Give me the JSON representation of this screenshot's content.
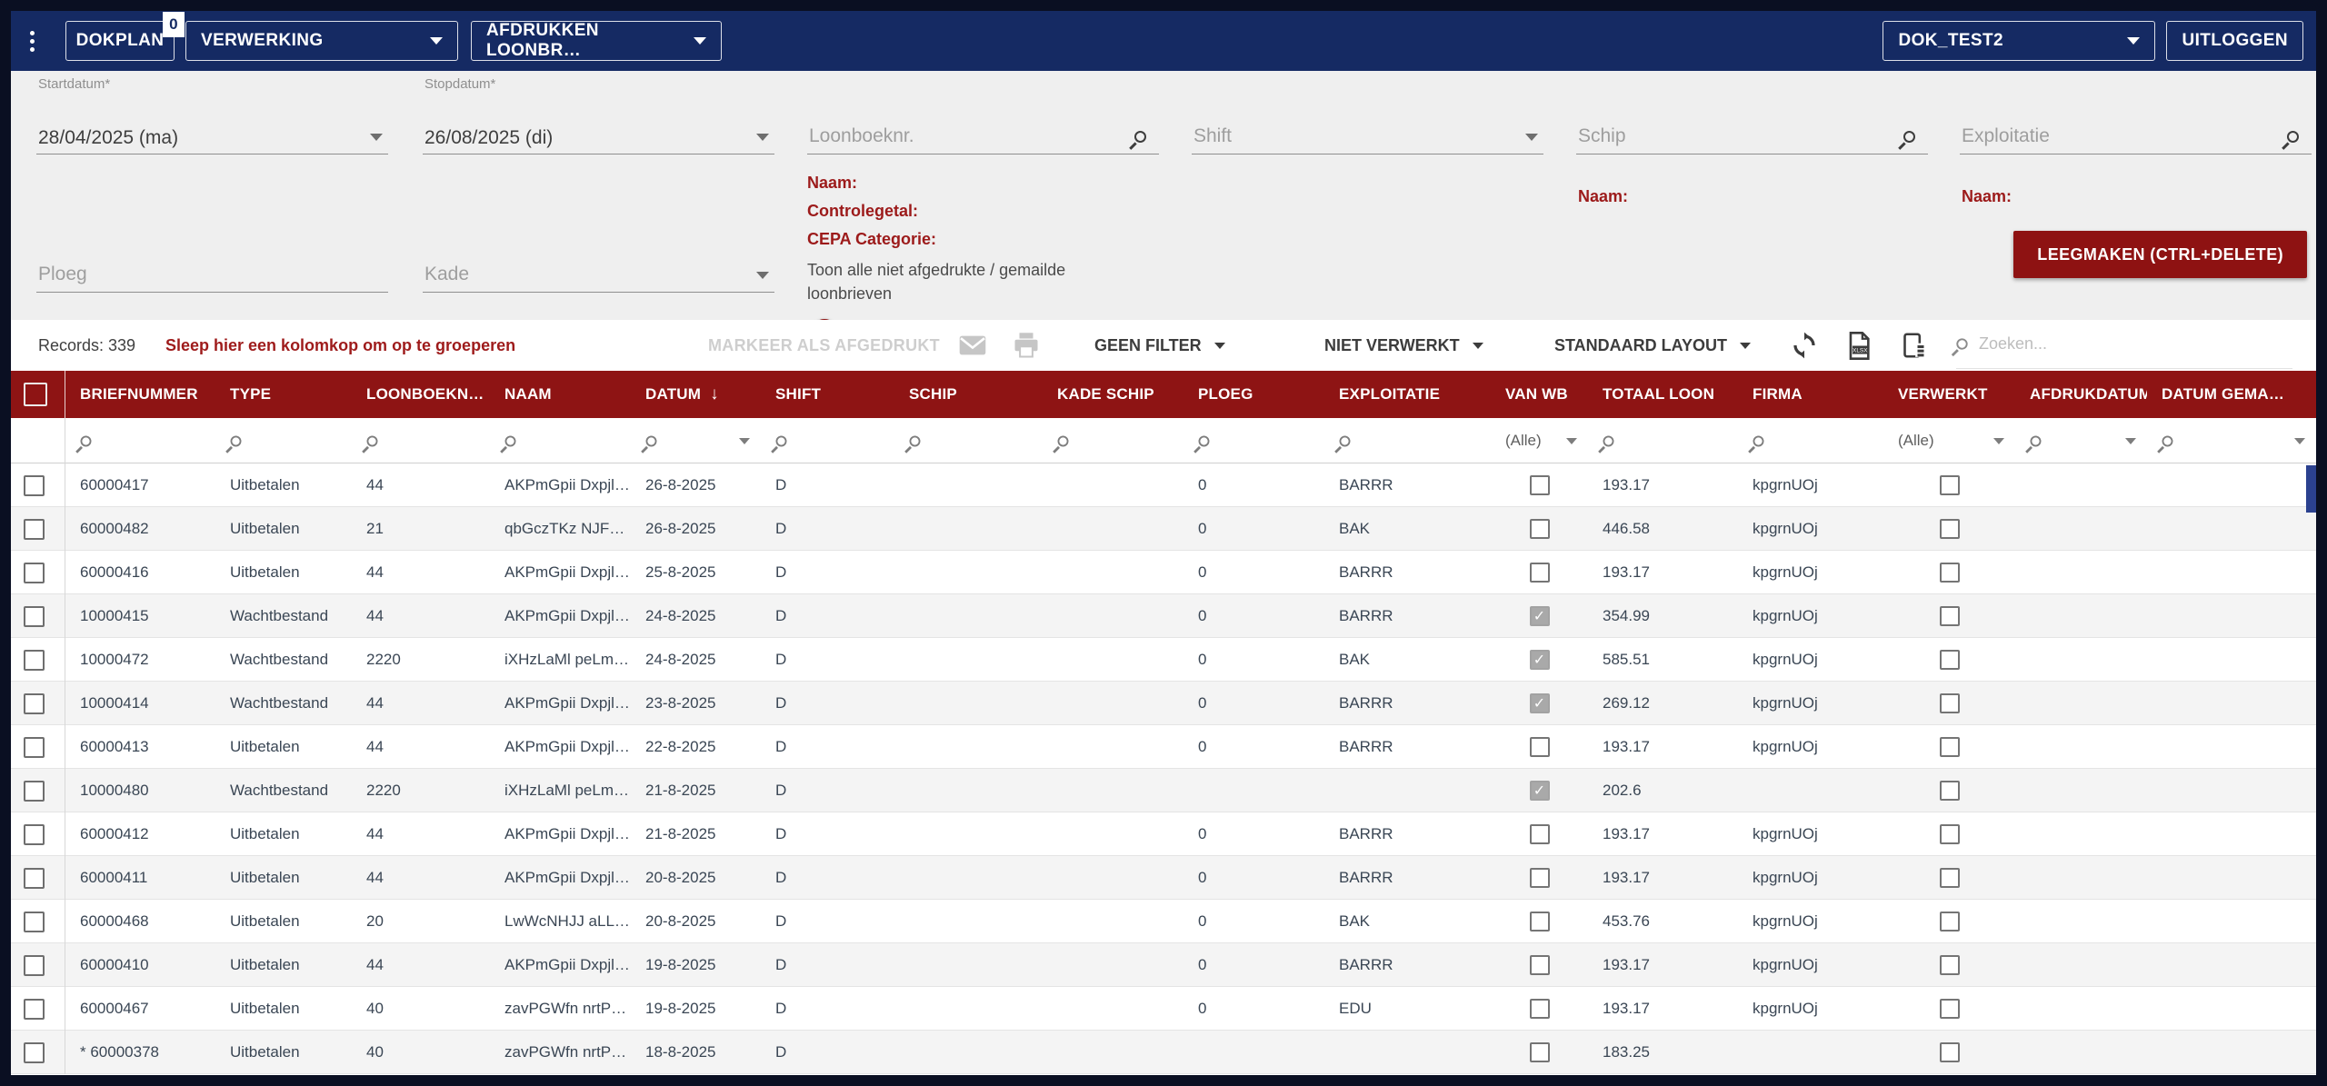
{
  "topbar": {
    "dokplan_label": "DOKPLAN",
    "dokplan_badge": "0",
    "module_dropdown": "VERWERKING",
    "view_dropdown": "AFDRUKKEN LOONBR…",
    "environment_dropdown": "DOK_TEST2",
    "logout_label": "UITLOGGEN"
  },
  "filters": {
    "startdatum": {
      "label": "Startdatum*",
      "value": "28/04/2025 (ma)"
    },
    "stopdatum": {
      "label": "Stopdatum*",
      "value": "26/08/2025 (di)"
    },
    "loonboeknr": {
      "placeholder": "Loonboeknr."
    },
    "shift": {
      "placeholder": "Shift"
    },
    "schip": {
      "placeholder": "Schip",
      "naam_label": "Naam:"
    },
    "exploitatie": {
      "placeholder": "Exploitatie",
      "naam_label": "Naam:"
    },
    "ploeg": {
      "placeholder": "Ploeg"
    },
    "kade": {
      "placeholder": "Kade"
    },
    "info": {
      "naam": "Naam:",
      "controlegetal": "Controlegetal:",
      "cepa": "CEPA Categorie:",
      "toggle_text": "Toon alle niet afgedrukte / gemailde loonbrieven"
    },
    "clear_button": "LEEGMAKEN (CTRL+DELETE)"
  },
  "toolbar": {
    "records": "Records: 339",
    "group_hint": "Sleep hier een kolomkop om op te groeperen",
    "mark_printed": "MARKEER ALS AFGEDRUKT",
    "filter_dropdown": "GEEN FILTER",
    "processed_dropdown": "NIET VERWERKT",
    "layout_dropdown": "STANDAARD LAYOUT",
    "search_placeholder": "Zoeken..."
  },
  "table": {
    "filter_all_value": "(Alle)",
    "sort_icon": "↓",
    "columns": [
      {
        "key": "briefnummer",
        "label": "BRIEFNUMMER",
        "filter": "search"
      },
      {
        "key": "type",
        "label": "TYPE",
        "filter": "search"
      },
      {
        "key": "loonboeknr",
        "label": "LOONBOEKN…",
        "filter": "search"
      },
      {
        "key": "naam",
        "label": "NAAM",
        "filter": "search"
      },
      {
        "key": "datum",
        "label": "DATUM",
        "filter": "search-caret",
        "sort": "desc"
      },
      {
        "key": "shift",
        "label": "SHIFT",
        "filter": "search"
      },
      {
        "key": "schip",
        "label": "SCHIP",
        "filter": "search"
      },
      {
        "key": "kade_schip",
        "label": "KADE SCHIP",
        "filter": "search"
      },
      {
        "key": "ploeg",
        "label": "PLOEG",
        "filter": "search"
      },
      {
        "key": "exploitatie",
        "label": "EXPLOITATIE",
        "filter": "search"
      },
      {
        "key": "van_wb",
        "label": "VAN WB",
        "filter": "all",
        "type": "checkbox"
      },
      {
        "key": "totaal_loon",
        "label": "TOTAAL LOON",
        "filter": "search"
      },
      {
        "key": "firma",
        "label": "FIRMA",
        "filter": "search"
      },
      {
        "key": "verwerkt",
        "label": "VERWERKT",
        "filter": "all",
        "type": "checkbox"
      },
      {
        "key": "afdrukdatum",
        "label": "AFDRUKDATUM",
        "filter": "search-caret"
      },
      {
        "key": "datum_gemaild",
        "label": "DATUM GEMA…",
        "filter": "search-caret"
      }
    ],
    "rows": [
      {
        "briefnummer": "60000417",
        "type": "Uitbetalen",
        "loonboeknr": "44",
        "naam": "AKPmGpii Dxpjlj…",
        "datum": "26-8-2025",
        "shift": "D",
        "schip": "",
        "kade_schip": "",
        "ploeg": "0",
        "exploitatie": "BARRR",
        "van_wb": false,
        "totaal_loon": "193.17",
        "firma": "kpgrnUOj",
        "verwerkt": false,
        "afdrukdatum": "",
        "datum_gemaild": ""
      },
      {
        "briefnummer": "60000482",
        "type": "Uitbetalen",
        "loonboeknr": "21",
        "naam": "qbGczTKz NJF…",
        "datum": "26-8-2025",
        "shift": "D",
        "schip": "",
        "kade_schip": "",
        "ploeg": "0",
        "exploitatie": "BAK",
        "van_wb": false,
        "totaal_loon": "446.58",
        "firma": "kpgrnUOj",
        "verwerkt": false,
        "afdrukdatum": "",
        "datum_gemaild": ""
      },
      {
        "briefnummer": "60000416",
        "type": "Uitbetalen",
        "loonboeknr": "44",
        "naam": "AKPmGpii Dxpjlj…",
        "datum": "25-8-2025",
        "shift": "D",
        "schip": "",
        "kade_schip": "",
        "ploeg": "0",
        "exploitatie": "BARRR",
        "van_wb": false,
        "totaal_loon": "193.17",
        "firma": "kpgrnUOj",
        "verwerkt": false,
        "afdrukdatum": "",
        "datum_gemaild": ""
      },
      {
        "briefnummer": "10000415",
        "type": "Wachtbestand",
        "loonboeknr": "44",
        "naam": "AKPmGpii Dxpjlj…",
        "datum": "24-8-2025",
        "shift": "D",
        "schip": "",
        "kade_schip": "",
        "ploeg": "0",
        "exploitatie": "BARRR",
        "van_wb": true,
        "totaal_loon": "354.99",
        "firma": "kpgrnUOj",
        "verwerkt": false,
        "afdrukdatum": "",
        "datum_gemaild": ""
      },
      {
        "briefnummer": "10000472",
        "type": "Wachtbestand",
        "loonboeknr": "2220",
        "naam": "iXHzLaMl peLm…",
        "datum": "24-8-2025",
        "shift": "D",
        "schip": "",
        "kade_schip": "",
        "ploeg": "0",
        "exploitatie": "BAK",
        "van_wb": true,
        "totaal_loon": "585.51",
        "firma": "kpgrnUOj",
        "verwerkt": false,
        "afdrukdatum": "",
        "datum_gemaild": ""
      },
      {
        "briefnummer": "10000414",
        "type": "Wachtbestand",
        "loonboeknr": "44",
        "naam": "AKPmGpii Dxpjlj…",
        "datum": "23-8-2025",
        "shift": "D",
        "schip": "",
        "kade_schip": "",
        "ploeg": "0",
        "exploitatie": "BARRR",
        "van_wb": true,
        "totaal_loon": "269.12",
        "firma": "kpgrnUOj",
        "verwerkt": false,
        "afdrukdatum": "",
        "datum_gemaild": ""
      },
      {
        "briefnummer": "60000413",
        "type": "Uitbetalen",
        "loonboeknr": "44",
        "naam": "AKPmGpii Dxpjlj…",
        "datum": "22-8-2025",
        "shift": "D",
        "schip": "",
        "kade_schip": "",
        "ploeg": "0",
        "exploitatie": "BARRR",
        "van_wb": false,
        "totaal_loon": "193.17",
        "firma": "kpgrnUOj",
        "verwerkt": false,
        "afdrukdatum": "",
        "datum_gemaild": ""
      },
      {
        "briefnummer": "10000480",
        "type": "Wachtbestand",
        "loonboeknr": "2220",
        "naam": "iXHzLaMl peLm…",
        "datum": "21-8-2025",
        "shift": "D",
        "schip": "",
        "kade_schip": "",
        "ploeg": "",
        "exploitatie": "",
        "van_wb": true,
        "totaal_loon": "202.6",
        "firma": "",
        "verwerkt": false,
        "afdrukdatum": "",
        "datum_gemaild": ""
      },
      {
        "briefnummer": "60000412",
        "type": "Uitbetalen",
        "loonboeknr": "44",
        "naam": "AKPmGpii Dxpjlj…",
        "datum": "21-8-2025",
        "shift": "D",
        "schip": "",
        "kade_schip": "",
        "ploeg": "0",
        "exploitatie": "BARRR",
        "van_wb": false,
        "totaal_loon": "193.17",
        "firma": "kpgrnUOj",
        "verwerkt": false,
        "afdrukdatum": "",
        "datum_gemaild": ""
      },
      {
        "briefnummer": "60000411",
        "type": "Uitbetalen",
        "loonboeknr": "44",
        "naam": "AKPmGpii Dxpjlj…",
        "datum": "20-8-2025",
        "shift": "D",
        "schip": "",
        "kade_schip": "",
        "ploeg": "0",
        "exploitatie": "BARRR",
        "van_wb": false,
        "totaal_loon": "193.17",
        "firma": "kpgrnUOj",
        "verwerkt": false,
        "afdrukdatum": "",
        "datum_gemaild": ""
      },
      {
        "briefnummer": "60000468",
        "type": "Uitbetalen",
        "loonboeknr": "20",
        "naam": "LwWcNHJJ aLL…",
        "datum": "20-8-2025",
        "shift": "D",
        "schip": "",
        "kade_schip": "",
        "ploeg": "0",
        "exploitatie": "BAK",
        "van_wb": false,
        "totaal_loon": "453.76",
        "firma": "kpgrnUOj",
        "verwerkt": false,
        "afdrukdatum": "",
        "datum_gemaild": ""
      },
      {
        "briefnummer": "60000410",
        "type": "Uitbetalen",
        "loonboeknr": "44",
        "naam": "AKPmGpii Dxpjlj…",
        "datum": "19-8-2025",
        "shift": "D",
        "schip": "",
        "kade_schip": "",
        "ploeg": "0",
        "exploitatie": "BARRR",
        "van_wb": false,
        "totaal_loon": "193.17",
        "firma": "kpgrnUOj",
        "verwerkt": false,
        "afdrukdatum": "",
        "datum_gemaild": ""
      },
      {
        "briefnummer": "60000467",
        "type": "Uitbetalen",
        "loonboeknr": "40",
        "naam": "zavPGWfn nrtP…",
        "datum": "19-8-2025",
        "shift": "D",
        "schip": "",
        "kade_schip": "",
        "ploeg": "0",
        "exploitatie": "EDU",
        "van_wb": false,
        "totaal_loon": "193.17",
        "firma": "kpgrnUOj",
        "verwerkt": false,
        "afdrukdatum": "",
        "datum_gemaild": ""
      },
      {
        "briefnummer": "* 60000378",
        "type": "Uitbetalen",
        "loonboeknr": "40",
        "naam": "zavPGWfn nrtP…",
        "datum": "18-8-2025",
        "shift": "D",
        "schip": "",
        "kade_schip": "",
        "ploeg": "",
        "exploitatie": "",
        "van_wb": false,
        "totaal_loon": "183.25",
        "firma": "",
        "verwerkt": false,
        "afdrukdatum": "",
        "datum_gemaild": ""
      }
    ]
  },
  "colors": {
    "navy": "#152a63",
    "frame": "#0a0f22",
    "dark_red": "#8e1414",
    "red_text": "#9c1a1a",
    "panel_bg": "#efefef",
    "row_alt": "#f4f4f4",
    "scrollbar_thumb": "#2b418f"
  }
}
